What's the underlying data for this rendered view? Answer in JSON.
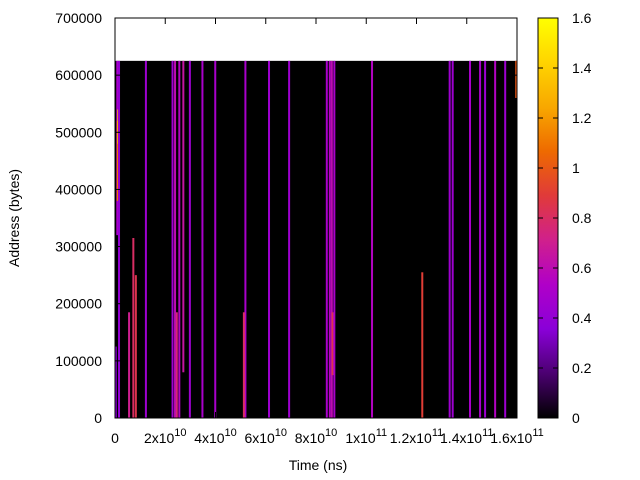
{
  "chart_data": {
    "type": "heatmap",
    "xlabel": "Time (ns)",
    "ylabel": "Address (bytes)",
    "xlim": [
      0,
      160000000000
    ],
    "ylim": [
      0,
      700000
    ],
    "x_ticks": [
      {
        "value": 0,
        "base": "0",
        "exp": ""
      },
      {
        "value": 20000000000,
        "base": "2x10",
        "exp": "10"
      },
      {
        "value": 40000000000,
        "base": "4x10",
        "exp": "10"
      },
      {
        "value": 60000000000,
        "base": "6x10",
        "exp": "10"
      },
      {
        "value": 80000000000,
        "base": "8x10",
        "exp": "10"
      },
      {
        "value": 100000000000,
        "base": "1x10",
        "exp": "11"
      },
      {
        "value": 120000000000,
        "base": "1.2x10",
        "exp": "11"
      },
      {
        "value": 140000000000,
        "base": "1.4x10",
        "exp": "11"
      },
      {
        "value": 160000000000,
        "base": "1.6x10",
        "exp": "11"
      }
    ],
    "y_ticks": [
      {
        "value": 0,
        "label": "0"
      },
      {
        "value": 100000,
        "label": "100000"
      },
      {
        "value": 200000,
        "label": "200000"
      },
      {
        "value": 300000,
        "label": "300000"
      },
      {
        "value": 400000,
        "label": "400000"
      },
      {
        "value": 500000,
        "label": "500000"
      },
      {
        "value": 600000,
        "label": "600000"
      },
      {
        "value": 700000,
        "label": "700000"
      }
    ],
    "colorbar": {
      "range": [
        0,
        1.6
      ],
      "ticks": [
        {
          "value": 0,
          "label": "0"
        },
        {
          "value": 0.2,
          "label": "0.2"
        },
        {
          "value": 0.4,
          "label": "0.4"
        },
        {
          "value": 0.6,
          "label": "0.6"
        },
        {
          "value": 0.8,
          "label": "0.8"
        },
        {
          "value": 1.0,
          "label": "1"
        },
        {
          "value": 1.2,
          "label": "1.2"
        },
        {
          "value": 1.4,
          "label": "1.4"
        },
        {
          "value": 1.6,
          "label": "1.6"
        }
      ],
      "palette": [
        "#000000",
        "#4b0070",
        "#8a00d8",
        "#b000c8",
        "#d0208c",
        "#e03a3a",
        "#ee6a00",
        "#f8a800",
        "#ffd400",
        "#ffff00"
      ]
    },
    "data_region": {
      "x": [
        0,
        160000000000
      ],
      "y": [
        0,
        625000
      ],
      "background_value": 0
    },
    "streaks": [
      {
        "x": 300000000,
        "y0": 0,
        "y1": 125000,
        "value": 0.35
      },
      {
        "x": 900000000,
        "y0": 320000,
        "y1": 625000,
        "value": 0.5
      },
      {
        "x": 1100000000,
        "y0": 380000,
        "y1": 520000,
        "value": 1.1
      },
      {
        "x": 1300000000,
        "y0": 480000,
        "y1": 540000,
        "value": 1.3
      },
      {
        "x": 1600000000,
        "y0": 0,
        "y1": 625000,
        "value": 0.4
      },
      {
        "x": 5600000000,
        "y0": 0,
        "y1": 185000,
        "value": 0.7
      },
      {
        "x": 7300000000,
        "y0": 0,
        "y1": 315000,
        "value": 0.8
      },
      {
        "x": 8300000000,
        "y0": 0,
        "y1": 250000,
        "value": 0.85
      },
      {
        "x": 12300000000,
        "y0": 0,
        "y1": 625000,
        "value": 0.45
      },
      {
        "x": 22900000000,
        "y0": 0,
        "y1": 625000,
        "value": 0.45
      },
      {
        "x": 23900000000,
        "y0": 0,
        "y1": 625000,
        "value": 0.6
      },
      {
        "x": 24600000000,
        "y0": 0,
        "y1": 185000,
        "value": 0.75
      },
      {
        "x": 25600000000,
        "y0": 0,
        "y1": 625000,
        "value": 0.55
      },
      {
        "x": 27200000000,
        "y0": 80000,
        "y1": 625000,
        "value": 0.65
      },
      {
        "x": 29800000000,
        "y0": 0,
        "y1": 625000,
        "value": 0.45
      },
      {
        "x": 34800000000,
        "y0": 0,
        "y1": 625000,
        "value": 0.5
      },
      {
        "x": 39900000000,
        "y0": 0,
        "y1": 625000,
        "value": 0.5
      },
      {
        "x": 51900000000,
        "y0": 0,
        "y1": 625000,
        "value": 0.5
      },
      {
        "x": 51300000000,
        "y0": 0,
        "y1": 185000,
        "value": 0.8
      },
      {
        "x": 61300000000,
        "y0": 0,
        "y1": 625000,
        "value": 0.45
      },
      {
        "x": 69300000000,
        "y0": 0,
        "y1": 625000,
        "value": 0.45
      },
      {
        "x": 84300000000,
        "y0": 0,
        "y1": 625000,
        "value": 0.5
      },
      {
        "x": 85500000000,
        "y0": 0,
        "y1": 625000,
        "value": 0.55
      },
      {
        "x": 86300000000,
        "y0": 0,
        "y1": 625000,
        "value": 0.6
      },
      {
        "x": 86600000000,
        "y0": 75000,
        "y1": 185000,
        "value": 0.85
      },
      {
        "x": 87300000000,
        "y0": 0,
        "y1": 625000,
        "value": 0.5
      },
      {
        "x": 102300000000,
        "y0": 0,
        "y1": 625000,
        "value": 0.55
      },
      {
        "x": 122300000000,
        "y0": 0,
        "y1": 255000,
        "value": 0.9
      },
      {
        "x": 133200000000,
        "y0": 0,
        "y1": 625000,
        "value": 0.45
      },
      {
        "x": 134400000000,
        "y0": 0,
        "y1": 625000,
        "value": 0.45
      },
      {
        "x": 141300000000,
        "y0": 0,
        "y1": 625000,
        "value": 0.5
      },
      {
        "x": 145300000000,
        "y0": 0,
        "y1": 625000,
        "value": 0.5
      },
      {
        "x": 147300000000,
        "y0": 0,
        "y1": 625000,
        "value": 0.45
      },
      {
        "x": 151300000000,
        "y0": 0,
        "y1": 625000,
        "value": 0.55
      },
      {
        "x": 155300000000,
        "y0": 0,
        "y1": 625000,
        "value": 0.45
      },
      {
        "x": 159700000000,
        "y0": 560000,
        "y1": 625000,
        "value": 1.0
      }
    ]
  }
}
